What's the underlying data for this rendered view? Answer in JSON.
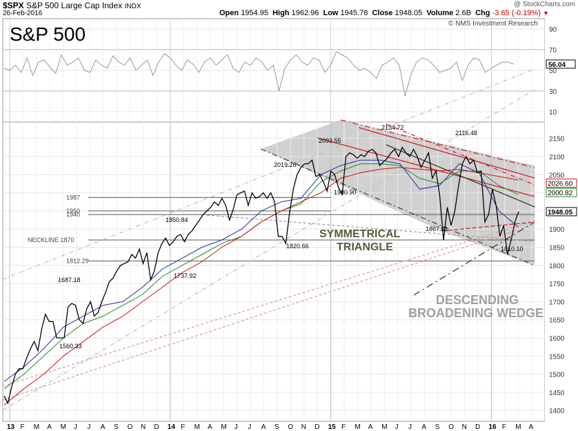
{
  "header": {
    "symbol": "$SPX",
    "name": "S&P 500 Large Cap Index",
    "exchange": "INDX",
    "watermark": "@ StockCharts.com",
    "date": "26-Feb-2016",
    "open_label": "Open",
    "open": "1954.95",
    "high_label": "High",
    "high": "1962.96",
    "low_label": "Low",
    "low": "1945.78",
    "close_label": "Close",
    "close": "1948.05",
    "volume_label": "Volume",
    "volume": "2.6B",
    "chg_label": "Chg",
    "chg": "-3.65 (-0.19%)",
    "chg_color": "#cc0000"
  },
  "chart_data": [
    {
      "type": "line",
      "panel": "indicator",
      "title": "S&P 500",
      "credit": "© NMS Investment Research",
      "ylim": [
        0,
        100
      ],
      "yticks": [
        10,
        30,
        50,
        70,
        90
      ],
      "reference_lines": [
        30,
        70
      ],
      "last_value": "56.04",
      "series": [
        {
          "color": "#999999",
          "values": [
            52,
            50,
            55,
            48,
            62,
            45,
            58,
            60,
            53,
            47,
            65,
            55,
            58,
            62,
            50,
            48,
            60,
            55,
            52,
            64,
            58,
            55,
            62,
            50,
            55,
            60,
            45,
            58,
            66,
            62,
            55,
            50,
            60,
            56,
            48,
            58,
            62,
            55,
            60,
            65,
            52,
            48,
            58,
            55,
            62,
            58,
            50,
            55,
            30,
            52,
            60,
            65,
            58,
            55,
            62,
            60,
            48,
            55,
            68,
            65,
            62,
            55,
            50,
            52,
            48,
            42,
            55,
            58,
            62,
            55,
            25,
            45,
            58,
            62,
            60,
            55,
            48,
            50,
            52,
            58,
            40,
            55,
            62,
            60,
            48,
            52,
            55,
            58,
            58,
            56
          ]
        }
      ]
    },
    {
      "type": "line",
      "panel": "price",
      "ylim": [
        1370,
        2195
      ],
      "yticks": [
        1400,
        1450,
        1500,
        1550,
        1600,
        1650,
        1700,
        1750,
        1800,
        1850,
        1900,
        1950,
        2000,
        2050,
        2100,
        2150
      ],
      "x_start": "2013-01",
      "x_end": "2016-04",
      "x_ticks": [
        "13",
        "F",
        "M",
        "A",
        "M",
        "J",
        "J",
        "A",
        "S",
        "O",
        "N",
        "D",
        "14",
        "F",
        "M",
        "A",
        "M",
        "J",
        "J",
        "A",
        "S",
        "O",
        "N",
        "D",
        "15",
        "F",
        "M",
        "A",
        "M",
        "J",
        "J",
        "A",
        "S",
        "O",
        "N",
        "D",
        "16",
        "F",
        "M",
        "A"
      ],
      "series": [
        {
          "color": "#000000",
          "values": [
            1440,
            1420,
            1465,
            1500,
            1515,
            1515,
            1545,
            1570,
            1590,
            1565,
            1625,
            1665,
            1645,
            1645,
            1600,
            1600,
            1600,
            1685,
            1695,
            1690,
            1650,
            1640,
            1680,
            1700,
            1660,
            1670,
            1700,
            1725,
            1755,
            1765,
            1785,
            1800,
            1805,
            1810,
            1830,
            1820,
            1845,
            1805,
            1835,
            1760,
            1785,
            1835,
            1860,
            1875,
            1855,
            1865,
            1880,
            1885,
            1865,
            1885,
            1895,
            1910,
            1925,
            1940,
            1950,
            1960,
            1975,
            1965,
            1985,
            1965,
            1925,
            1955,
            1995,
            2000,
            2005,
            1965,
            2000,
            1985,
            1990,
            2000,
            1985,
            2000,
            1975,
            1880,
            1880,
            1860,
            1945,
            2010,
            2050,
            2070,
            2080,
            2080,
            2090,
            2045,
            2050,
            2030,
            2005,
            2060,
            2050,
            2015,
            1995,
            2100,
            2110,
            2105,
            2095,
            2105,
            2100,
            2115,
            2120,
            2110,
            2075,
            2085,
            2095,
            2110,
            2120,
            2100,
            2125,
            2110,
            2100,
            2120,
            2100,
            2070,
            2090,
            2110,
            2040,
            2060,
            1990,
            1870,
            1960,
            1910,
            1950,
            2020,
            2080,
            2100,
            2080,
            2090,
            2055,
            2060,
            1920,
            1940,
            2010,
            1965,
            1880,
            1910,
            1830,
            1870,
            1920,
            1948
          ]
        },
        {
          "name": "",
          "color": "#1f2fa0",
          "values": [
            1480,
            1520,
            1570,
            1630,
            1660,
            1690,
            1700,
            1740,
            1790,
            1820,
            1850,
            1870,
            1900,
            1950,
            1975,
            1985,
            2050,
            2075,
            2090,
            2090,
            2080,
            2010,
            2020,
            2080,
            2055,
            1950,
            1905
          ]
        },
        {
          "name": "",
          "color": "#1e8a1e",
          "values": [
            1460,
            1500,
            1550,
            1600,
            1640,
            1660,
            1690,
            1720,
            1770,
            1800,
            1830,
            1860,
            1880,
            1920,
            1950,
            1970,
            2030,
            2060,
            2080,
            2080,
            2075,
            2040,
            2025,
            2060,
            2060,
            2020,
            1995
          ]
        },
        {
          "name": "",
          "color": "#cc1111",
          "values": [
            1415,
            1460,
            1500,
            1550,
            1590,
            1630,
            1660,
            1700,
            1740,
            1780,
            1810,
            1850,
            1880,
            1920,
            1950,
            1975,
            2000,
            2040,
            2055,
            2065,
            2070,
            2065,
            2060,
            2065,
            2055,
            2045,
            2035
          ]
        }
      ],
      "annotations": {
        "price_labels": [
          "2134.72",
          "2116.48",
          "2093.55",
          "2019.26",
          "1980.90",
          "1850.84",
          "1867.01",
          "1820.66",
          "1810.10",
          "1737.92",
          "1687.18",
          "1560.33"
        ],
        "horizontal_levels": [
          {
            "label": "1987",
            "y": 1987
          },
          {
            "label": "1950",
            "y": 1950
          },
          {
            "label": "1940",
            "y": 1940
          },
          {
            "label": "NECKLINE  1870",
            "y": 1870
          },
          {
            "label": "1812.29",
            "y": 1812.29
          }
        ],
        "pattern_labels": [
          "SYMMETRICAL",
          "TRIANGLE",
          "DESCENDING",
          "BROADENING WEDGE"
        ],
        "right_axis_tags": [
          {
            "label": "2026.60",
            "y": 2026.6,
            "color": "#cc1111"
          },
          {
            "label": "2000.82",
            "y": 2000.82,
            "color": "#1e8a1e"
          },
          {
            "label": "1948.05",
            "y": 1948.05,
            "color": "#000000"
          }
        ]
      }
    }
  ]
}
